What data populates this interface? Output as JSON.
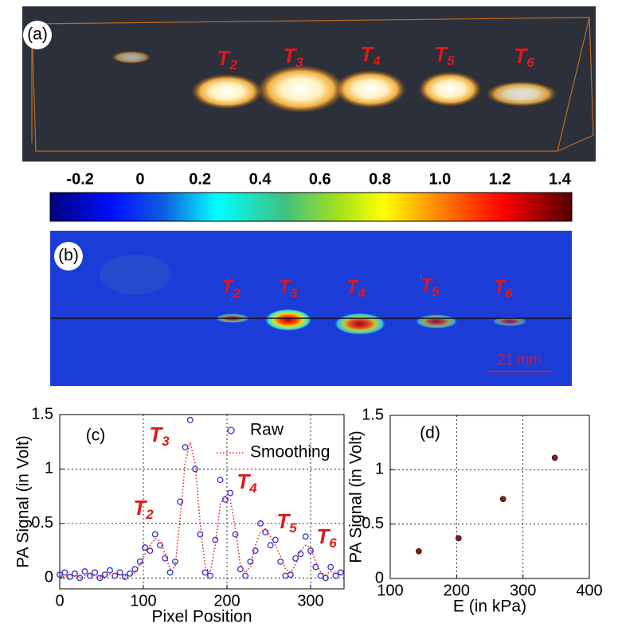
{
  "panel_a": {
    "label": "(a)",
    "annotations": [
      {
        "base": "T",
        "sub": "2"
      },
      {
        "base": "T",
        "sub": "3"
      },
      {
        "base": "T",
        "sub": "4"
      },
      {
        "base": "T",
        "sub": "5"
      },
      {
        "base": "T",
        "sub": "6"
      }
    ]
  },
  "colorbar": {
    "lim": [
      -0.3,
      1.44
    ],
    "ticks": [
      -0.2,
      0,
      0.2,
      0.4,
      0.6,
      0.8,
      {
        "value": 1,
        "label": "1.0"
      },
      1.2,
      1.4
    ]
  },
  "panel_b": {
    "label": "(b)",
    "scale_bar": "21 mm",
    "annotations": [
      {
        "base": "T",
        "sub": "2"
      },
      {
        "base": "T",
        "sub": "3"
      },
      {
        "base": "T",
        "sub": "4"
      },
      {
        "base": "T",
        "sub": "5"
      },
      {
        "base": "T",
        "sub": "6"
      }
    ]
  },
  "chart_data": [
    {
      "type": "line",
      "label": "(c)",
      "x_label": "Pixel Position",
      "y_label": "PA Signal (in Volt)",
      "x": [
        0,
        6,
        12,
        18,
        24,
        30,
        36,
        42,
        48,
        54,
        60,
        66,
        72,
        78,
        84,
        90,
        96,
        102,
        108,
        114,
        120,
        126,
        132,
        138,
        144,
        150,
        156,
        162,
        168,
        174,
        180,
        186,
        192,
        198,
        204,
        210,
        216,
        222,
        228,
        234,
        240,
        246,
        252,
        258,
        264,
        270,
        276,
        282,
        288,
        294,
        300,
        306,
        312,
        318,
        324,
        330,
        336
      ],
      "series": [
        {
          "name": "Raw",
          "color": "#3232d2",
          "marker": "circle",
          "values": [
            0.03,
            0.05,
            0.01,
            0.04,
            0,
            0.06,
            0.02,
            0.05,
            0,
            0.03,
            0.07,
            0.02,
            0.05,
            0.01,
            0.04,
            0.08,
            0.15,
            0.28,
            0.25,
            0.4,
            0.3,
            0.18,
            0.05,
            0.15,
            0.7,
            1.2,
            1.45,
            1.0,
            0.4,
            0.05,
            0.02,
            0.35,
            0.9,
            0.72,
            0.78,
            0.4,
            0.08,
            0.02,
            0.15,
            0.25,
            0.5,
            0.42,
            0.3,
            0.35,
            0.15,
            0.02,
            0.03,
            0.18,
            0.22,
            0.38,
            0.25,
            0.1,
            0.02,
            0,
            0.1,
            0.02,
            0.05
          ]
        },
        {
          "name": "Smoothing",
          "color": "#e8221c",
          "line_style": "dotted",
          "values": [
            0.02,
            0.01,
            0.03,
            0.02,
            0.01,
            0.02,
            0.03,
            0.02,
            0.01,
            0.02,
            0.03,
            0.04,
            0.03,
            0.02,
            0.02,
            0.05,
            0.12,
            0.22,
            0.3,
            0.36,
            0.34,
            0.22,
            0.08,
            0.1,
            0.55,
            1.05,
            1.25,
            1.05,
            0.5,
            0.1,
            0.05,
            0.3,
            0.68,
            0.75,
            0.72,
            0.45,
            0.12,
            0.05,
            0.1,
            0.3,
            0.42,
            0.45,
            0.38,
            0.3,
            0.2,
            0.08,
            0.05,
            0.12,
            0.25,
            0.3,
            0.28,
            0.15,
            0.05,
            0.03,
            0.06,
            0.05,
            0.03
          ]
        }
      ],
      "xlim": [
        0,
        340
      ],
      "ylim": [
        -0.1,
        1.5
      ],
      "xticks": [
        0,
        100,
        200,
        300
      ],
      "yticks": [
        0,
        0.5,
        1,
        1.5
      ],
      "grid": true,
      "legend": "upper right",
      "annotations": [
        {
          "base": "T",
          "sub": "2"
        },
        {
          "base": "T",
          "sub": "3"
        },
        {
          "base": "T",
          "sub": "4"
        },
        {
          "base": "T",
          "sub": "5"
        },
        {
          "base": "T",
          "sub": "6"
        }
      ]
    },
    {
      "type": "scatter",
      "label": "(d)",
      "x_label": "E (in kPa)",
      "y_label": "PA Signal (in Volt)",
      "x": [
        143,
        203,
        270,
        348
      ],
      "values": [
        0.25,
        0.37,
        0.73,
        1.11
      ],
      "color": "#8b1a1a",
      "xlim": [
        100,
        400
      ],
      "ylim": [
        0,
        1.5
      ],
      "xticks": [
        100,
        200,
        300,
        400
      ],
      "yticks": [
        0,
        0.5,
        1,
        1.5
      ],
      "grid": true
    }
  ]
}
